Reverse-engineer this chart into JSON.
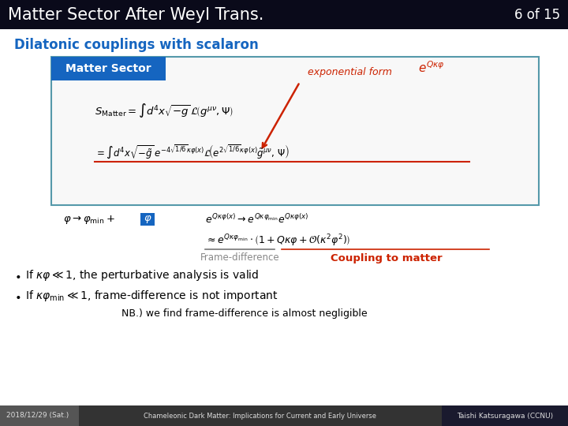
{
  "title": "Matter Sector After Weyl Trans.",
  "slide_number": "6 of 15",
  "bg_color": "#ffffff",
  "header_bg": "#0a0a1a",
  "header_text_color": "#ffffff",
  "section_title": "Dilatonic couplings with scalaron",
  "section_title_color": "#1565c0",
  "box_bg": "#ffffff",
  "box_border_color": "#5599aa",
  "box_header_bg": "#1565c0",
  "box_header_text": "Matter Sector",
  "box_header_text_color": "#ffffff",
  "exp_form_label": "exponential form",
  "exp_form_color": "#cc2200",
  "phi_box_color": "#1565c0",
  "frame_diff_label": "Frame-difference",
  "frame_diff_color": "#888888",
  "coupling_label": "Coupling to matter",
  "coupling_color": "#cc2200",
  "nb_text": "NB.) we find frame-difference is almost negligible",
  "footer_bg": "#333333",
  "footer_date_bg": "#555555",
  "footer_date": "2018/12/29 (Sat.)",
  "footer_title": "Chameleonic Dark Matter: Implications for Current and Early Universe",
  "footer_author": "Taishi Katsuragawa (CCNU)",
  "footer_author_bg": "#1a1a2e",
  "footer_text_color": "#dddddd",
  "red_underline_color": "#cc2200",
  "gray_underline_color": "#777777"
}
